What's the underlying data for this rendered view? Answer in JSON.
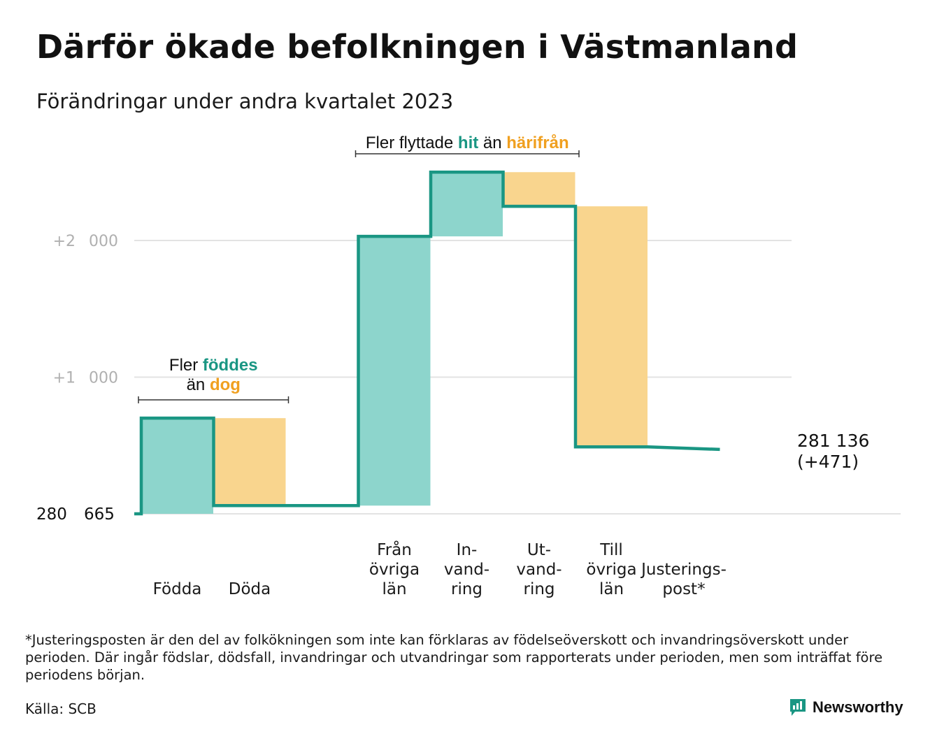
{
  "header": {
    "title": "Därför ökade befolkningen i Västmanland",
    "subtitle": "Förändringar under andra kvartalet 2023"
  },
  "colors": {
    "increase": "#8dd5cc",
    "decrease": "#f9d58e",
    "line": "#1a9683",
    "teal_text": "#1a9683",
    "orange_text": "#f0a020",
    "grid": "#e3e3e3",
    "tick_text": "#b0b0b0"
  },
  "annotations": {
    "births": {
      "prefix": "Fler",
      "highlight1": "föddes",
      "middle": "än",
      "highlight2": "dog"
    },
    "moves": {
      "prefix": "Fler flyttade",
      "highlight1": "hit",
      "middle": "än",
      "highlight2": "härifrån"
    }
  },
  "end_label": {
    "line1": "281 136",
    "line2": "(+471)"
  },
  "chart_data": {
    "type": "waterfall",
    "title": "Därför ökade befolkningen i Västmanland",
    "subtitle": "Förändringar under andra kvartalet 2023",
    "start_label": "280 665",
    "start_value": 280665,
    "end_value": 281136,
    "net_change": 471,
    "y_ticks": [
      {
        "value": 1000,
        "label": "+1 000"
      },
      {
        "value": 2000,
        "label": "+2 000"
      }
    ],
    "ylim": [
      0,
      2500
    ],
    "grid": true,
    "categories": [
      {
        "label": [
          "Födda"
        ],
        "change": 700,
        "kind": "increase"
      },
      {
        "label": [
          "Döda"
        ],
        "change": -640,
        "kind": "decrease"
      },
      {
        "label": [
          "Från",
          "övriga",
          "län"
        ],
        "change": 1970,
        "kind": "increase"
      },
      {
        "label": [
          "In-",
          "vand-",
          "ring"
        ],
        "change": 470,
        "kind": "increase"
      },
      {
        "label": [
          "Ut-",
          "vand-",
          "ring"
        ],
        "change": -250,
        "kind": "decrease"
      },
      {
        "label": [
          "Till",
          "övriga",
          "län"
        ],
        "change": -1760,
        "kind": "decrease"
      },
      {
        "label": [
          "Justerings-",
          "post*"
        ],
        "change": -19,
        "kind": "adjustment"
      }
    ]
  },
  "footnote": "*Justeringsposten är den del av folkökningen som inte kan förklaras av födelseöverskott och invandringsöverskott under perioden. Där ingår födslar, dödsfall, invandringar och utvandringar som rapporterats under perioden, men som inträffat före periodens början.",
  "source": "Källa: SCB",
  "brand": {
    "name": "Newsworthy",
    "icon": "newsworthy-logo-icon"
  }
}
